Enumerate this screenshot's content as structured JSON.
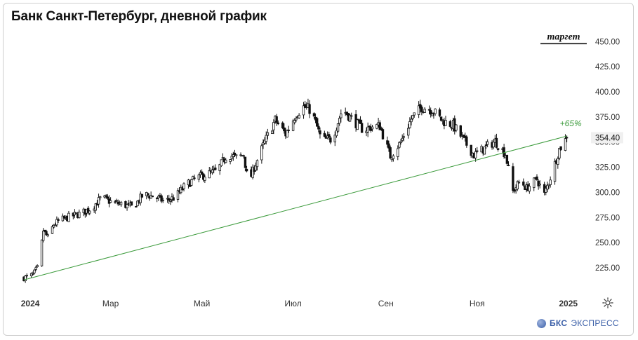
{
  "header": {
    "title": "Банк Санкт-Петербург, дневной график"
  },
  "brand": {
    "name": "БКС",
    "suffix": "ЭКСПРЕСС",
    "icon": "bks-logo-icon"
  },
  "settings": {
    "icon": "gear-icon"
  },
  "colors": {
    "candle_body": "#111111",
    "trend_line": "#3a9a3a",
    "trend_label": "#3a9a3a",
    "axis_text": "#333333",
    "price_marker_bg": "#f0f0f0"
  },
  "chart_data": {
    "type": "candlestick",
    "title": "Банк Санкт-Петербург, дневной график",
    "y_axis": {
      "position": "right",
      "ylim": [
        200,
        460
      ],
      "ticks": [
        225,
        250,
        275,
        300,
        325,
        350,
        375,
        400,
        425,
        450
      ],
      "tick_labels": [
        "225.00",
        "250.00",
        "275.00",
        "300.00",
        "325.00",
        "350.00",
        "375.00",
        "400.00",
        "425.00",
        "450.00"
      ]
    },
    "x_axis": {
      "range": [
        "2024-01-03",
        "2025-01-03"
      ],
      "tick_labels": [
        "2024",
        "Мар",
        "Май",
        "Июл",
        "Сен",
        "Ноя",
        "2025"
      ],
      "tick_dates": [
        "2024-01-01",
        "2024-03-01",
        "2024-05-01",
        "2024-07-01",
        "2024-09-01",
        "2024-11-01",
        "2025-01-01"
      ]
    },
    "grid": false,
    "current_price": {
      "value": 354.4,
      "label": "354.40"
    },
    "target": {
      "label": "таргет",
      "value": 450.0
    },
    "trend_line": {
      "start": {
        "date": "2024-01-03",
        "value": 213
      },
      "end": {
        "date": "2024-12-31",
        "value": 356
      },
      "label": "+65%"
    },
    "close_series": [
      [
        "2024-01-03",
        215
      ],
      [
        "2024-01-09",
        218
      ],
      [
        "2024-01-13",
        227
      ],
      [
        "2024-01-16",
        262
      ],
      [
        "2024-01-19",
        255
      ],
      [
        "2024-01-23",
        268
      ],
      [
        "2024-01-27",
        272
      ],
      [
        "2024-02-03",
        276
      ],
      [
        "2024-02-10",
        279
      ],
      [
        "2024-02-17",
        284
      ],
      [
        "2024-02-24",
        295
      ],
      [
        "2024-03-02",
        290
      ],
      [
        "2024-03-09",
        288
      ],
      [
        "2024-03-16",
        285
      ],
      [
        "2024-03-23",
        298
      ],
      [
        "2024-03-30",
        296
      ],
      [
        "2024-04-06",
        291
      ],
      [
        "2024-04-13",
        295
      ],
      [
        "2024-04-20",
        307
      ],
      [
        "2024-04-27",
        314
      ],
      [
        "2024-05-04",
        318
      ],
      [
        "2024-05-11",
        321
      ],
      [
        "2024-05-18",
        338
      ],
      [
        "2024-05-25",
        334
      ],
      [
        "2024-05-29",
        338
      ],
      [
        "2024-06-01",
        308
      ],
      [
        "2024-06-05",
        325
      ],
      [
        "2024-06-12",
        350
      ],
      [
        "2024-06-19",
        372
      ],
      [
        "2024-06-26",
        358
      ],
      [
        "2024-07-03",
        378
      ],
      [
        "2024-07-08",
        385
      ],
      [
        "2024-07-13",
        382
      ],
      [
        "2024-07-20",
        352
      ],
      [
        "2024-07-27",
        353
      ],
      [
        "2024-08-03",
        383
      ],
      [
        "2024-08-10",
        372
      ],
      [
        "2024-08-17",
        362
      ],
      [
        "2024-08-24",
        366
      ],
      [
        "2024-08-28",
        366
      ],
      [
        "2024-09-04",
        336
      ],
      [
        "2024-09-11",
        350
      ],
      [
        "2024-09-18",
        373
      ],
      [
        "2024-09-25",
        385
      ],
      [
        "2024-10-02",
        382
      ],
      [
        "2024-10-09",
        371
      ],
      [
        "2024-10-16",
        367
      ],
      [
        "2024-10-23",
        352
      ],
      [
        "2024-10-30",
        337
      ],
      [
        "2024-11-06",
        344
      ],
      [
        "2024-11-13",
        351
      ],
      [
        "2024-11-20",
        338
      ],
      [
        "2024-11-25",
        301
      ],
      [
        "2024-11-30",
        312
      ],
      [
        "2024-12-04",
        304
      ],
      [
        "2024-12-11",
        313
      ],
      [
        "2024-12-16",
        298
      ],
      [
        "2024-12-21",
        319
      ],
      [
        "2024-12-26",
        343
      ],
      [
        "2024-12-31",
        354.4
      ]
    ]
  }
}
